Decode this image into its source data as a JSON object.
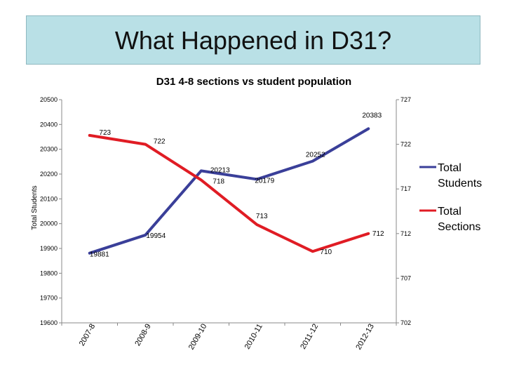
{
  "slide": {
    "title": "What Happened in D31?"
  },
  "chart_data": {
    "type": "line",
    "title": "D31 4-8 sections vs student population",
    "ylabel": "Total Students",
    "y2label": "",
    "categories": [
      "2007-8",
      "2008-9",
      "2009-10",
      "2010-11",
      "2011-12",
      "2012-13"
    ],
    "ylim": [
      19600,
      20500
    ],
    "yticks": [
      19600,
      19700,
      19800,
      19900,
      20000,
      20100,
      20200,
      20300,
      20400,
      20500
    ],
    "y2lim": [
      702,
      727
    ],
    "y2ticks": [
      702,
      707,
      712,
      717,
      722,
      727
    ],
    "grid": false,
    "legend_position": "right",
    "series": [
      {
        "name": "Total Students",
        "axis": "left",
        "color": "#3a3f99",
        "values": [
          19881,
          19954,
          20213,
          20179,
          20252,
          20383
        ],
        "labels": [
          "19881",
          "19954",
          "20213",
          "20179",
          "20252",
          "20383"
        ]
      },
      {
        "name": "Total Sections",
        "axis": "right",
        "color": "#e01c24",
        "values": [
          723,
          722,
          718,
          713,
          710,
          712
        ],
        "labels": [
          "723",
          "722",
          "718",
          "713",
          "710",
          "712"
        ]
      }
    ]
  }
}
